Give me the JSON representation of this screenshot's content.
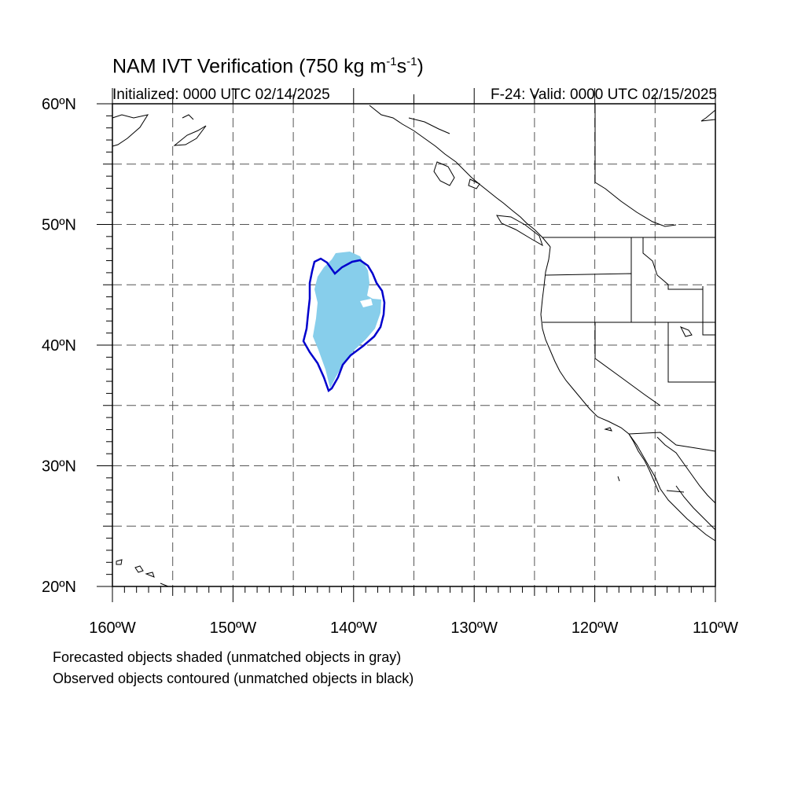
{
  "header": {
    "title_main": "NAM IVT Verification (750 kg m",
    "title_exp1": "-1",
    "title_mid": "s",
    "title_exp2": "-1",
    "title_end": ")",
    "initialized": "Initialized: 0000 UTC 02/14/2025",
    "valid": "F-24: Valid: 0000 UTC 02/15/2025"
  },
  "map": {
    "lon_range": [
      -160,
      -110
    ],
    "lat_range": [
      20,
      60
    ],
    "lat_labels": [
      "20ºN",
      "30ºN",
      "40ºN",
      "50ºN",
      "60ºN"
    ],
    "lon_labels": [
      "160ºW",
      "150ºW",
      "140ºW",
      "130ºW",
      "120ºW",
      "110ºW"
    ],
    "grid_spacing_deg": 5,
    "colors": {
      "forecast_fill": "#87ceeb",
      "observed_contour": "#0000cd",
      "coastline": "#000000",
      "grid": "#555555"
    }
  },
  "legend": {
    "line1": "Forecasted objects shaded (unmatched objects in gray)",
    "line2": "Observed objects contoured (unmatched objects in black)"
  }
}
